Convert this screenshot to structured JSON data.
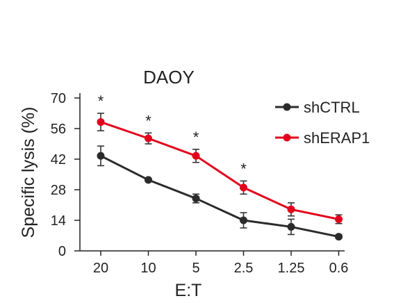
{
  "chart_data": {
    "type": "line",
    "title": "DAOY",
    "xlabel": "E:T",
    "ylabel": "Specific lysis (%)",
    "categories": [
      "20",
      "10",
      "5",
      "2.5",
      "1.25",
      "0.6"
    ],
    "yticks": [
      "0",
      "14",
      "28",
      "42",
      "56",
      "70"
    ],
    "ylim": [
      0,
      70
    ],
    "legend_position": "top-right",
    "series": [
      {
        "name": "shCTRL",
        "color": "#2b2b2b",
        "values": [
          43.5,
          32.5,
          24,
          14,
          11,
          6.5
        ],
        "errors": [
          4.5,
          0.8,
          2,
          3.5,
          3.5,
          0.8
        ]
      },
      {
        "name": "shERAP1",
        "color": "#e3001b",
        "values": [
          59,
          51.5,
          43.5,
          29,
          19,
          14.5
        ],
        "errors": [
          4,
          2.5,
          3,
          3,
          3,
          2
        ]
      }
    ],
    "annotations": [
      {
        "text": "*",
        "category_index": 0
      },
      {
        "text": "*",
        "category_index": 1
      },
      {
        "text": "*",
        "category_index": 2
      },
      {
        "text": "*",
        "category_index": 3
      }
    ]
  }
}
